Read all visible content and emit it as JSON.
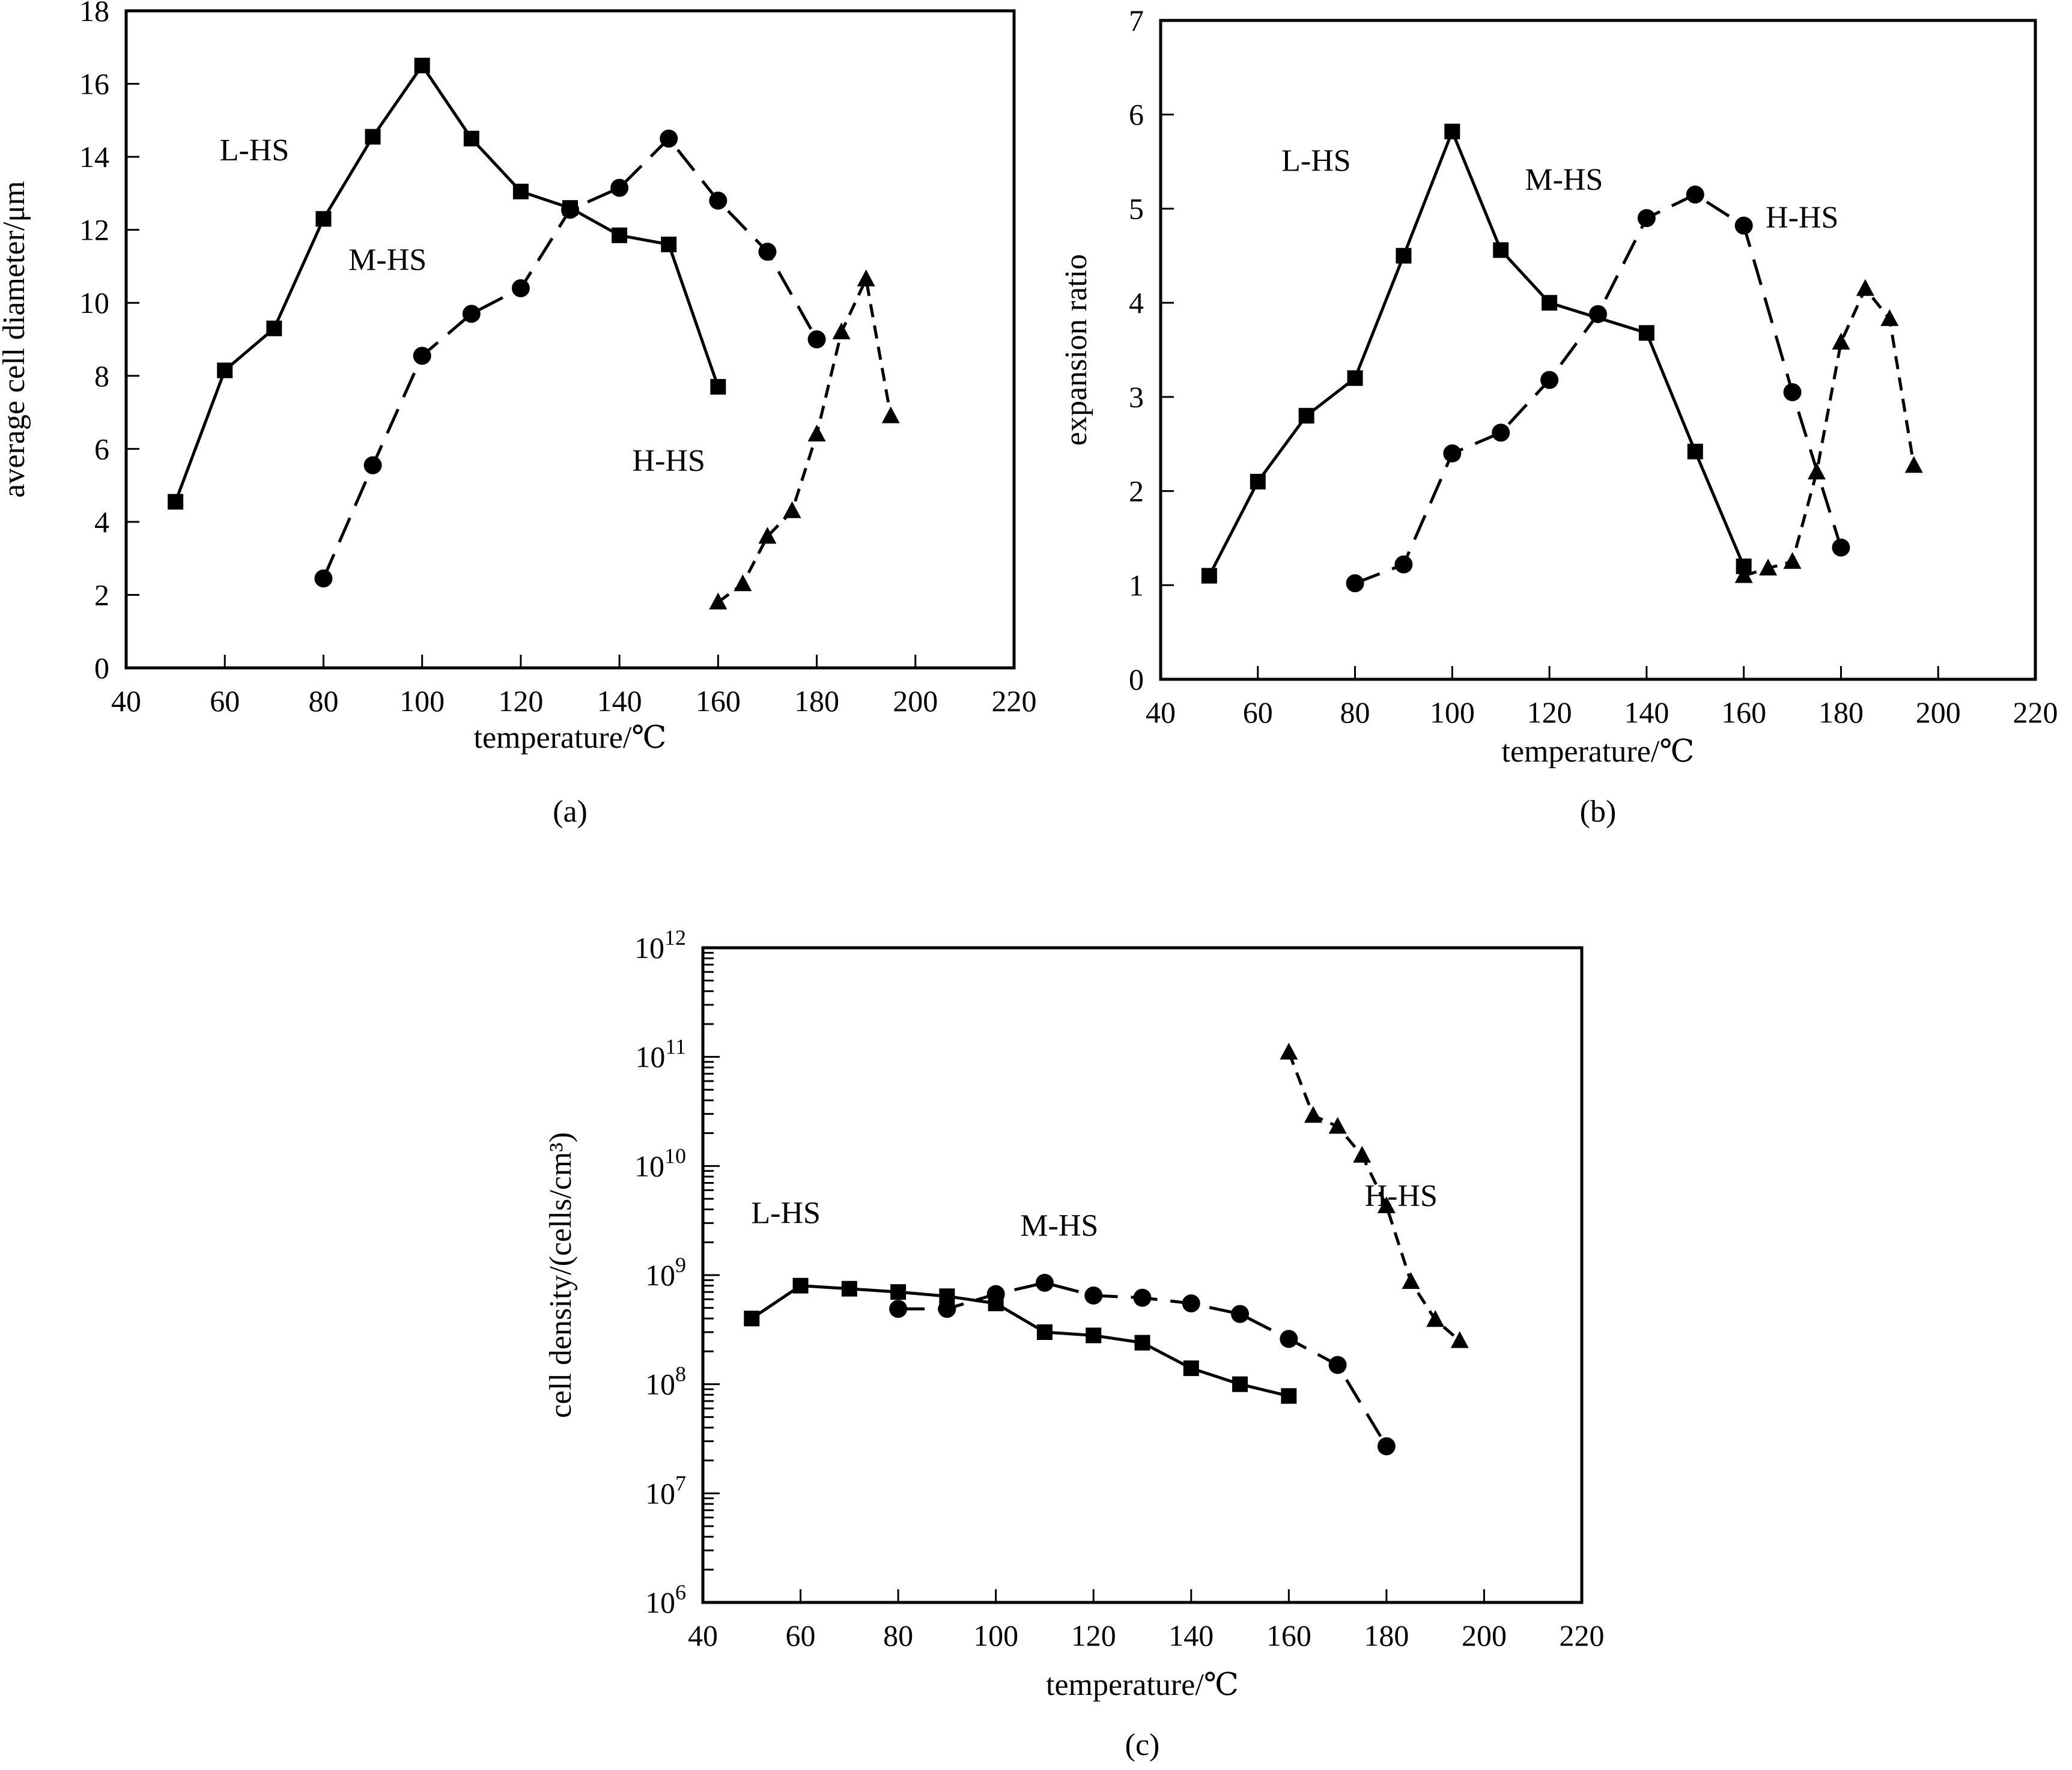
{
  "figure": {
    "panels": [
      "a",
      "b",
      "c"
    ]
  },
  "chart_data": [
    {
      "id": "a",
      "type": "line",
      "caption": "(a)",
      "title": "",
      "xlabel": "temperature/℃",
      "ylabel": "average cell diameter/μm",
      "xlim": [
        40,
        220
      ],
      "ylim": [
        0,
        18
      ],
      "yscale": "linear",
      "xticks": [
        40,
        60,
        80,
        100,
        120,
        140,
        160,
        180,
        200,
        220
      ],
      "yticks": [
        0,
        2,
        4,
        6,
        8,
        10,
        12,
        14,
        16,
        18
      ],
      "grid": false,
      "legend": "inline labels",
      "series": [
        {
          "name": "L-HS",
          "marker": "square",
          "line": "solid",
          "x": [
            50,
            60,
            70,
            80,
            90,
            100,
            110,
            120,
            130,
            140,
            150,
            160
          ],
          "y": [
            4.55,
            8.15,
            9.3,
            12.3,
            14.55,
            16.5,
            14.5,
            13.05,
            12.6,
            11.85,
            11.6,
            7.7
          ]
        },
        {
          "name": "M-HS",
          "marker": "circle",
          "line": "long-dash",
          "x": [
            80,
            90,
            100,
            110,
            120,
            130,
            140,
            150,
            160,
            170,
            180
          ],
          "y": [
            2.45,
            5.55,
            8.55,
            9.7,
            10.4,
            12.55,
            13.15,
            14.5,
            12.8,
            11.4,
            9.0
          ]
        },
        {
          "name": "H-HS",
          "marker": "triangle",
          "line": "short-dash",
          "x": [
            160,
            165,
            170,
            175,
            180,
            185,
            190,
            195
          ],
          "y": [
            1.8,
            2.3,
            3.6,
            4.3,
            6.4,
            9.2,
            10.65,
            6.9
          ]
        }
      ],
      "annotations": [
        {
          "text": "L-HS",
          "x": 66,
          "y": 13.9
        },
        {
          "text": "M-HS",
          "x": 93,
          "y": 10.9
        },
        {
          "text": "H-HS",
          "x": 150,
          "y": 5.4
        }
      ]
    },
    {
      "id": "b",
      "type": "line",
      "caption": "(b)",
      "title": "",
      "xlabel": "temperature/℃",
      "ylabel": "expansion ratio",
      "xlim": [
        40,
        220
      ],
      "ylim": [
        0,
        7
      ],
      "yscale": "linear",
      "xticks": [
        40,
        60,
        80,
        100,
        120,
        140,
        160,
        180,
        200,
        220
      ],
      "yticks": [
        0,
        1,
        2,
        3,
        4,
        5,
        6,
        7
      ],
      "grid": false,
      "legend": "inline labels",
      "series": [
        {
          "name": "L-HS",
          "marker": "square",
          "line": "solid",
          "x": [
            50,
            60,
            70,
            80,
            90,
            100,
            110,
            120,
            140,
            150,
            160
          ],
          "y": [
            1.1,
            2.1,
            2.8,
            3.2,
            4.5,
            5.82,
            4.56,
            4.0,
            3.68,
            2.42,
            1.2
          ]
        },
        {
          "name": "M-HS",
          "marker": "circle",
          "line": "long-dash",
          "x": [
            80,
            90,
            100,
            110,
            120,
            130,
            140,
            150,
            160,
            170,
            180
          ],
          "y": [
            1.02,
            1.22,
            2.4,
            2.62,
            3.18,
            3.88,
            4.9,
            5.15,
            4.82,
            3.05,
            1.4
          ]
        },
        {
          "name": "H-HS",
          "marker": "triangle",
          "line": "short-dash",
          "x": [
            160,
            165,
            170,
            175,
            180,
            185,
            190,
            195
          ],
          "y": [
            1.1,
            1.18,
            1.25,
            2.2,
            3.58,
            4.15,
            3.83,
            2.27
          ]
        }
      ],
      "annotations": [
        {
          "text": "L-HS",
          "x": 72,
          "y": 5.4
        },
        {
          "text": "M-HS",
          "x": 123,
          "y": 5.2
        },
        {
          "text": "H-HS",
          "x": 172,
          "y": 4.8
        }
      ]
    },
    {
      "id": "c",
      "type": "line",
      "caption": "(c)",
      "title": "",
      "xlabel": "temperature/℃",
      "ylabel": "cell density/(cells/cm³)",
      "xlim": [
        40,
        220
      ],
      "ylim": [
        1000000.0,
        1000000000000.0
      ],
      "yscale": "log",
      "xticks": [
        40,
        60,
        80,
        100,
        120,
        140,
        160,
        180,
        200,
        220
      ],
      "yticks_exponents": [
        6,
        7,
        8,
        9,
        10,
        11,
        12
      ],
      "grid": false,
      "legend": "inline labels",
      "series": [
        {
          "name": "L-HS",
          "marker": "square",
          "line": "solid",
          "x": [
            50,
            60,
            70,
            80,
            90,
            100,
            110,
            120,
            130,
            140,
            150,
            160
          ],
          "y": [
            400000000.0,
            800000000.0,
            750000000.0,
            700000000.0,
            640000000.0,
            550000000.0,
            300000000.0,
            280000000.0,
            240000000.0,
            140000000.0,
            100000000.0,
            78000000.0
          ]
        },
        {
          "name": "M-HS",
          "marker": "circle",
          "line": "long-dash",
          "x": [
            80,
            90,
            100,
            110,
            120,
            130,
            140,
            150,
            160,
            170,
            180
          ],
          "y": [
            490000000.0,
            490000000.0,
            670000000.0,
            850000000.0,
            650000000.0,
            620000000.0,
            550000000.0,
            440000000.0,
            260000000.0,
            150000000.0,
            27000000.0
          ]
        },
        {
          "name": "H-HS",
          "marker": "triangle",
          "line": "short-dash",
          "x": [
            160,
            165,
            170,
            175,
            180,
            185,
            190,
            195
          ],
          "y": [
            110000000000.0,
            29000000000.0,
            23000000000.0,
            12500000000.0,
            4300000000.0,
            870000000.0,
            390000000.0,
            250000000.0
          ]
        }
      ],
      "annotations": [
        {
          "text": "L-HS",
          "x": 57,
          "y": 3000000000.0
        },
        {
          "text": "M-HS",
          "x": 113,
          "y": 2300000000.0
        },
        {
          "text": "H-HS",
          "x": 183,
          "y": 4300000000.0
        }
      ]
    }
  ]
}
